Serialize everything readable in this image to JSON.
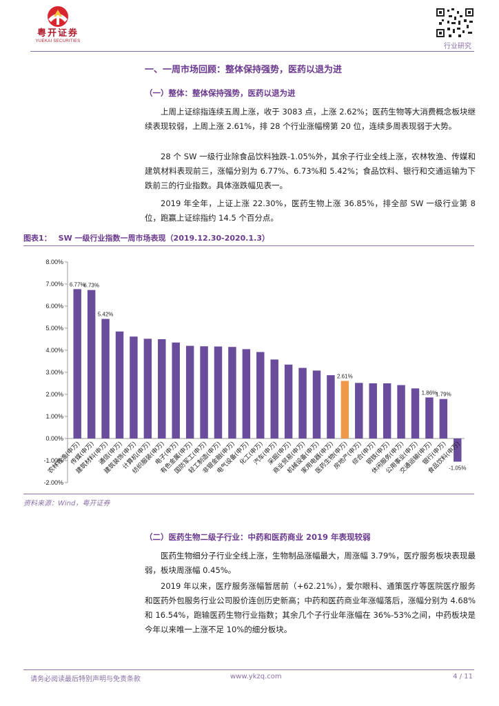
{
  "header": {
    "logo_cn": "粤开证券",
    "logo_en": "YUEKAI SECURITIES",
    "section_label": "行业研究"
  },
  "section1": {
    "title": "一、一周市场回顾：整体保持强势，医药以退为进",
    "sub1_title": "（一）整体：整体保持强势，医药以退为进",
    "p1": "上周上证综指连续五周上涨，收于 3083 点，上涨 2.62%；医药生物等大消费概念板块继续表现较弱，上周上涨 2.61%，排 28 个行业涨幅榜第 20 位，连续多周表现弱于大势。",
    "p2": "28 个 SW 一级行业除食品饮料独跌-1.05%外，其余子行业全线上涨，农林牧渔、传媒和建筑材料表现前三，涨幅分别为 6.77%、6.73%和 5.42%；食品饮料、银行和交通运输为下跌前三的行业指数。具体涨跌幅见表一。",
    "p3": "2019 年全年，上证上涨 22.30%，医药生物上涨 36.85%，排全部 SW 一级行业第 8 位，跑赢上证综指约 14.5 个百分点。"
  },
  "figure": {
    "label": "图表1：",
    "title": "SW 一级行业指数一周市场表现（2019.12.30-2020.1.3）",
    "source": "资料来源：Wind，粤开证券"
  },
  "chart_data": {
    "type": "bar",
    "categories": [
      "农林牧渔(申万)",
      "传媒(申万)",
      "建筑材料(申万)",
      "通信(申万)",
      "建筑装饰(申万)",
      "计算机(申万)",
      "纺织服装(申万)",
      "电子(申万)",
      "有色金属(申万)",
      "国防军工(申万)",
      "轻工制造(申万)",
      "非银金融(申万)",
      "电气设备(申万)",
      "化工(申万)",
      "汽车(申万)",
      "采掘(申万)",
      "商业贸易(申万)",
      "机械设备(申万)",
      "家用电器(申万)",
      "医药生物(申万)",
      "房地产(申万)",
      "综合(申万)",
      "钢铁(申万)",
      "休闲服务(申万)",
      "公用事业(申万)",
      "交通运输(申万)",
      "银行(申万)",
      "食品饮料(申万)"
    ],
    "values": [
      6.77,
      6.73,
      5.42,
      4.85,
      4.62,
      4.52,
      4.5,
      4.35,
      4.2,
      4.18,
      4.17,
      4.15,
      4.05,
      3.92,
      3.58,
      3.35,
      3.2,
      3.08,
      2.87,
      2.61,
      2.52,
      2.5,
      2.5,
      2.42,
      2.27,
      1.86,
      1.79,
      -1.05
    ],
    "data_labels": [
      "6.77%",
      "6.73%",
      "5.42%",
      "",
      "",
      "",
      "",
      "",
      "",
      "",
      "",
      "",
      "",
      "",
      "",
      "",
      "",
      "",
      "",
      "2.61%",
      "",
      "",
      "",
      "",
      "",
      "1.86%",
      "1.79%",
      "-1.05%"
    ],
    "highlight_category": "医药生物(申万)",
    "bar_color": "#6a4c9c",
    "highlight_color": "#f0984a",
    "ylim": [
      -2,
      8
    ],
    "yticks": [
      -2,
      -1,
      0,
      1,
      2,
      3,
      4,
      5,
      6,
      7,
      8
    ],
    "ytick_labels": [
      "-2.00%",
      "-1.00%",
      "0.00%",
      "1.00%",
      "2.00%",
      "3.00%",
      "4.00%",
      "5.00%",
      "6.00%",
      "7.00%",
      "8.00%"
    ],
    "grid": false,
    "legend": "none",
    "title": "",
    "xlabel": "",
    "ylabel": ""
  },
  "section2": {
    "sub2_title": "（二）医药生物二级子行业：中药和医药商业 2019 年表现较弱",
    "p1": "医药生物细分子行业全线上涨，生物制品涨幅最大，周涨幅 3.79%，医疗服务板块表现最弱，板块周涨幅 0.45%。",
    "p2": "2019 年以来，医疗服务涨幅暂居前（+62.21%），爱尔眼科、通策医疗等医院医疗服务和医药外包服务行业公司股价连创历史新高；中药和医药商业年涨幅落后，涨幅分别为 4.68%和 16.54%，跑输医药生物行业指数；其余几个子行业年涨幅在 36%-53%之间，中药板块是今年以来唯一上涨不足 10%的细分板块。"
  },
  "footer": {
    "disclaimer": "请务必阅读最后特别声明与免责条款",
    "website": "www.ykzq.com",
    "page": "4 / 11"
  },
  "colors": {
    "brand_red": "#b11e2c",
    "heading_purple": "#6b3a8e",
    "rule_purple": "#8a6fa6"
  },
  "icons": {
    "logo": "yuekai-logo-icon",
    "qr": "qr-code-icon"
  }
}
